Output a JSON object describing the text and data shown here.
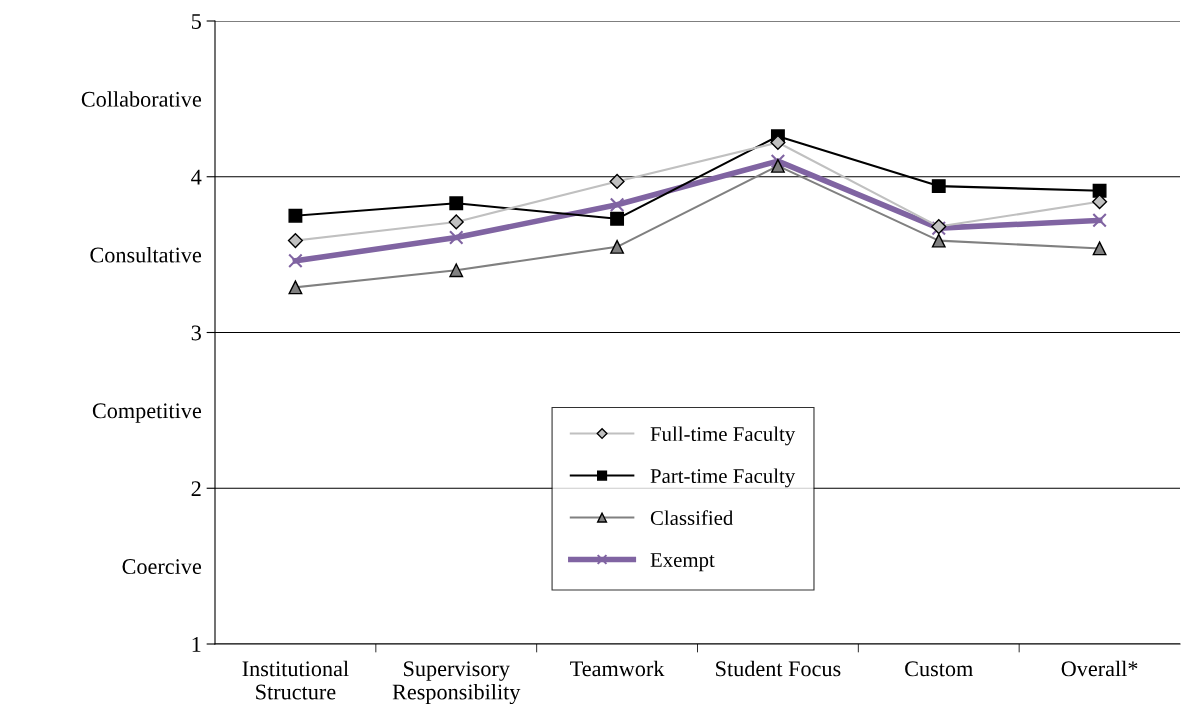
{
  "chart_data": {
    "type": "line",
    "categories": [
      "Institutional\nStructure",
      "Supervisory\nResponsibility",
      "Teamwork",
      "Student Focus",
      "Custom",
      "Overall*"
    ],
    "series": [
      {
        "name": "Full-time Faculty",
        "color": "#c0c0c0",
        "marker": "diamond",
        "values": [
          3.59,
          3.71,
          3.97,
          4.22,
          3.68,
          3.84
        ]
      },
      {
        "name": "Part-time Faculty",
        "color": "#000000",
        "marker": "square",
        "values": [
          3.75,
          3.83,
          3.73,
          4.26,
          3.94,
          3.91
        ]
      },
      {
        "name": "Classified",
        "color": "#808080",
        "marker": "triangle",
        "values": [
          3.29,
          3.4,
          3.55,
          4.07,
          3.59,
          3.54
        ]
      },
      {
        "name": "Exempt",
        "color": "#8064a2",
        "marker": "cross",
        "values": [
          3.46,
          3.61,
          3.82,
          4.1,
          3.67,
          3.72
        ]
      }
    ],
    "ylim": [
      1,
      5
    ],
    "yticks": [
      1,
      {
        "value": 1.5,
        "label": "Coercive"
      },
      2,
      {
        "value": 2.5,
        "label": "Competitive"
      },
      3,
      {
        "value": 3.5,
        "label": "Consultative"
      },
      4,
      {
        "value": 4.5,
        "label": "Collaborative"
      },
      5
    ],
    "grid": "y",
    "legend": "bottom"
  }
}
